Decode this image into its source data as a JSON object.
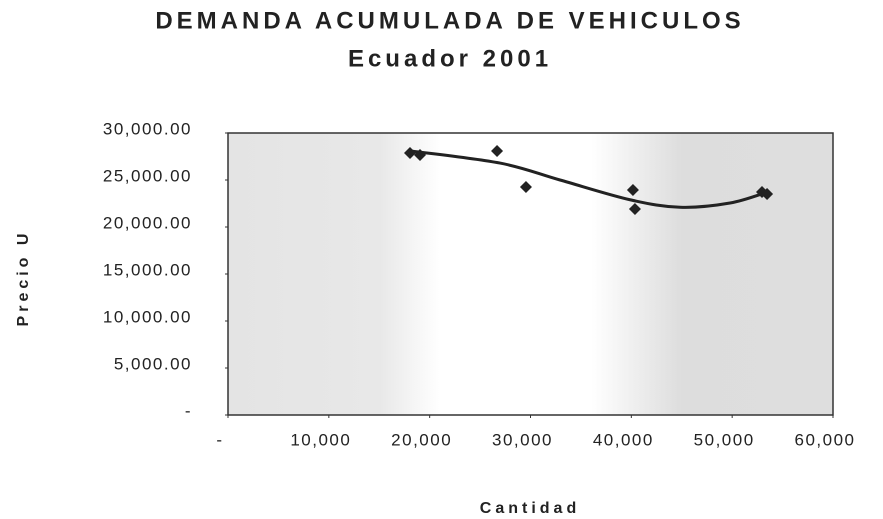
{
  "chart_data": {
    "type": "scatter",
    "title": "DEMANDA ACUMULADA DE VEHICULOS",
    "subtitle": "Ecuador 2001",
    "x_label": "Cantidad",
    "y_label": "Precio U",
    "series": [
      {
        "color": "#222222",
        "x": [
          18050,
          19040,
          26680,
          29550,
          40160,
          40360,
          52960,
          53460
        ],
        "values": [
          27870,
          27660,
          28090,
          24250,
          23940,
          21910,
          23720,
          23510
        ]
      }
    ],
    "trend": {
      "color": "#222222",
      "x": [
        18050,
        26980,
        32930,
        39870,
        44830,
        49790,
        53460
      ],
      "values": [
        28100,
        26800,
        25000,
        22900,
        22100,
        22550,
        23700
      ]
    },
    "xlim": [
      0,
      60000
    ],
    "xticks": [
      {
        "value": 0,
        "label": "-"
      },
      {
        "value": 10000,
        "label": "10,000"
      },
      {
        "value": 20000,
        "label": "20,000"
      },
      {
        "value": 30000,
        "label": "30,000"
      },
      {
        "value": 40000,
        "label": "40,000"
      },
      {
        "value": 50000,
        "label": "50,000"
      },
      {
        "value": 60000,
        "label": "60,000"
      }
    ],
    "ylim": [
      0,
      30000
    ],
    "yticks": [
      {
        "value": 0,
        "label": "-"
      },
      {
        "value": 5000,
        "label": "5,000.00"
      },
      {
        "value": 10000,
        "label": "10,000.00"
      },
      {
        "value": 15000,
        "label": "15,000.00"
      },
      {
        "value": 20000,
        "label": "20,000.00"
      },
      {
        "value": 25000,
        "label": "25,000.00"
      },
      {
        "value": 30000,
        "label": "30,000.00"
      }
    ],
    "grid": false
  }
}
